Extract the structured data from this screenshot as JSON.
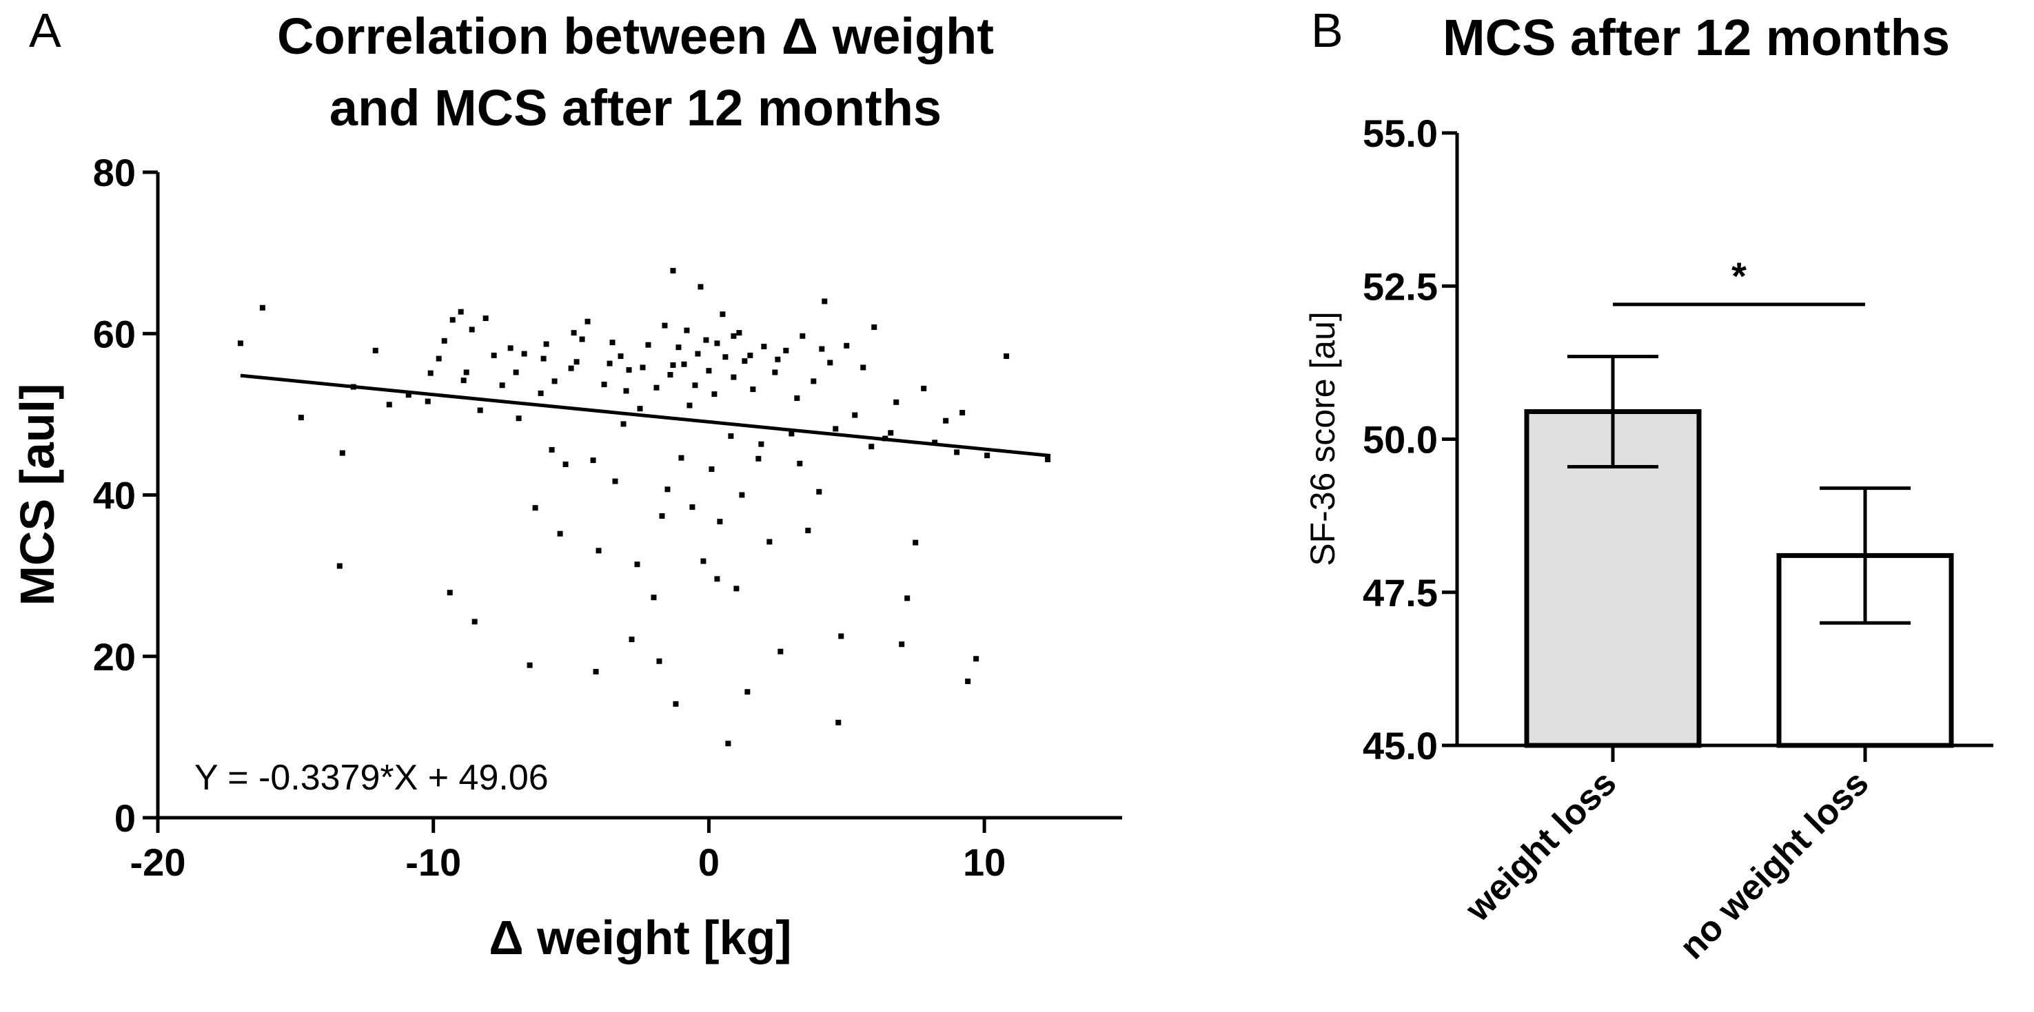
{
  "panel_a": {
    "letter": "A",
    "chart_data": {
      "type": "scatter",
      "title": [
        "Correlation between Δ weight",
        "and MCS after 12 months"
      ],
      "xlabel": "Δ weight [kg]",
      "ylabel": "MCS [aul]",
      "xlim": [
        -20,
        15
      ],
      "ylim": [
        0,
        80
      ],
      "x_ticks": [
        -20,
        -10,
        0,
        10
      ],
      "y_ticks": [
        0,
        20,
        40,
        60,
        80
      ],
      "x_tick_labels": [
        "-20",
        "-10",
        "0",
        "10"
      ],
      "y_tick_labels": [
        "0",
        "20",
        "40",
        "60",
        "80"
      ],
      "grid": false,
      "regression": {
        "slope": -0.3379,
        "intercept": 49.06,
        "x_range": [
          -17,
          12.4
        ],
        "equation": "Y = -0.3379*X + 49.06"
      },
      "points": [
        [
          -17,
          58.8
        ],
        [
          -16.2,
          63.2
        ],
        [
          -14.8,
          49.6
        ],
        [
          -13.3,
          45.2
        ],
        [
          -13.4,
          31.2
        ],
        [
          -12.9,
          53.4
        ],
        [
          -12.1,
          57.9
        ],
        [
          -11.6,
          51.2
        ],
        [
          -10.9,
          52.4
        ],
        [
          -10.2,
          51.6
        ],
        [
          -10.1,
          55.1
        ],
        [
          -9.8,
          56.9
        ],
        [
          -9.6,
          59.1
        ],
        [
          -9.4,
          27.9
        ],
        [
          -9.3,
          61.7
        ],
        [
          -9.0,
          62.7
        ],
        [
          -8.8,
          55.2
        ],
        [
          -8.6,
          60.5
        ],
        [
          -8.5,
          24.3
        ],
        [
          -8.3,
          50.5
        ],
        [
          -8.1,
          61.9
        ],
        [
          -7.8,
          57.3
        ],
        [
          -7.5,
          53.6
        ],
        [
          -7.2,
          58.2
        ],
        [
          -7.0,
          55.2
        ],
        [
          -6.7,
          57.5
        ],
        [
          -6.5,
          18.9
        ],
        [
          -6.3,
          38.4
        ],
        [
          -6.1,
          52.6
        ],
        [
          -5.9,
          58.7
        ],
        [
          -5.6,
          54.1
        ],
        [
          -5.4,
          35.2
        ],
        [
          -5.2,
          43.8
        ],
        [
          -5.0,
          55.7
        ],
        [
          -4.8,
          56.5
        ],
        [
          -4.6,
          59.3
        ],
        [
          -4.4,
          61.5
        ],
        [
          -4.2,
          44.3
        ],
        [
          -4.0,
          33.1
        ],
        [
          -4.1,
          18.1
        ],
        [
          -3.8,
          53.7
        ],
        [
          -3.6,
          56.3
        ],
        [
          -3.4,
          41.7
        ],
        [
          -3.2,
          57.2
        ],
        [
          -3.0,
          52.9
        ],
        [
          -2.8,
          22.1
        ],
        [
          -2.6,
          31.4
        ],
        [
          -2.4,
          55.8
        ],
        [
          -2.2,
          58.6
        ],
        [
          -2.0,
          27.3
        ],
        [
          -1.9,
          53.3
        ],
        [
          -1.8,
          19.4
        ],
        [
          -1.6,
          61.0
        ],
        [
          -1.5,
          40.7
        ],
        [
          -1.4,
          54.9
        ],
        [
          -1.3,
          67.8
        ],
        [
          -1.2,
          14.1
        ],
        [
          -1.1,
          58.3
        ],
        [
          -1.0,
          44.6
        ],
        [
          -0.9,
          56.2
        ],
        [
          -0.8,
          60.4
        ],
        [
          -0.7,
          51.1
        ],
        [
          -0.6,
          38.5
        ],
        [
          -0.5,
          53.6
        ],
        [
          -0.4,
          57.5
        ],
        [
          -0.3,
          65.8
        ],
        [
          -0.2,
          31.8
        ],
        [
          -0.1,
          59.2
        ],
        [
          0,
          55.4
        ],
        [
          0.1,
          43.2
        ],
        [
          0.2,
          52.5
        ],
        [
          0.3,
          58.8
        ],
        [
          0.4,
          36.7
        ],
        [
          0.5,
          62.4
        ],
        [
          0.6,
          57.1
        ],
        [
          0.7,
          9.2
        ],
        [
          0.8,
          47.3
        ],
        [
          0.9,
          54.6
        ],
        [
          1.0,
          28.4
        ],
        [
          1.1,
          60.1
        ],
        [
          1.2,
          40.0
        ],
        [
          1.3,
          56.6
        ],
        [
          1.4,
          15.6
        ],
        [
          1.6,
          53.1
        ],
        [
          1.8,
          44.5
        ],
        [
          2.0,
          58.4
        ],
        [
          2.2,
          34.2
        ],
        [
          2.4,
          55.2
        ],
        [
          2.6,
          20.6
        ],
        [
          2.8,
          57.9
        ],
        [
          3.0,
          47.6
        ],
        [
          3.2,
          52.0
        ],
        [
          3.4,
          59.7
        ],
        [
          3.6,
          35.6
        ],
        [
          3.8,
          54.1
        ],
        [
          4.0,
          40.4
        ],
        [
          4.2,
          64.0
        ],
        [
          4.4,
          56.4
        ],
        [
          4.6,
          48.2
        ],
        [
          4.7,
          11.8
        ],
        [
          4.8,
          22.5
        ],
        [
          5.0,
          58.5
        ],
        [
          5.3,
          49.9
        ],
        [
          5.6,
          55.8
        ],
        [
          6.0,
          60.8
        ],
        [
          6.4,
          47.0
        ],
        [
          6.8,
          51.5
        ],
        [
          7.0,
          21.5
        ],
        [
          7.2,
          27.2
        ],
        [
          7.5,
          34.1
        ],
        [
          7.8,
          53.2
        ],
        [
          8.2,
          46.5
        ],
        [
          8.6,
          49.2
        ],
        [
          9.0,
          45.3
        ],
        [
          9.2,
          50.2
        ],
        [
          9.4,
          16.9
        ],
        [
          9.7,
          19.7
        ],
        [
          10.1,
          44.9
        ],
        [
          10.8,
          57.2
        ],
        [
          12.3,
          44.4
        ],
        [
          -6.9,
          49.5
        ],
        [
          -5.7,
          45.6
        ],
        [
          -3.1,
          48.8
        ],
        [
          -2.5,
          50.7
        ],
        [
          -1.7,
          37.4
        ],
        [
          0.3,
          29.6
        ],
        [
          1.9,
          46.3
        ],
        [
          3.3,
          43.9
        ],
        [
          5.9,
          46.0
        ],
        [
          6.6,
          47.7
        ],
        [
          -4.9,
          60.1
        ],
        [
          -3.5,
          58.9
        ],
        [
          -1.3,
          56.1
        ],
        [
          0.9,
          59.7
        ],
        [
          2.5,
          56.8
        ],
        [
          4.1,
          58.1
        ],
        [
          -8.9,
          54.2
        ],
        [
          -6.0,
          56.9
        ],
        [
          -2.9,
          55.5
        ],
        [
          1.5,
          57.3
        ]
      ]
    }
  },
  "panel_b": {
    "letter": "B",
    "chart_data": {
      "type": "bar",
      "title": "MCS after 12 months",
      "ylabel": "SF-36 score [au]",
      "categories": [
        "weight loss",
        "no weight loss"
      ],
      "values": [
        50.45,
        48.1
      ],
      "errors": [
        0.9,
        1.1
      ],
      "bar_colors": [
        "#e0e0e0",
        "#ffffff"
      ],
      "ylim": [
        45.0,
        55.0
      ],
      "y_ticks": [
        45.0,
        47.5,
        50.0,
        52.5,
        55.0
      ],
      "y_tick_labels": [
        "45.0",
        "47.5",
        "50.0",
        "52.5",
        "55.0"
      ],
      "significance": {
        "between": [
          0,
          1
        ],
        "label": "*",
        "level": 52.2
      },
      "grid": false
    }
  }
}
